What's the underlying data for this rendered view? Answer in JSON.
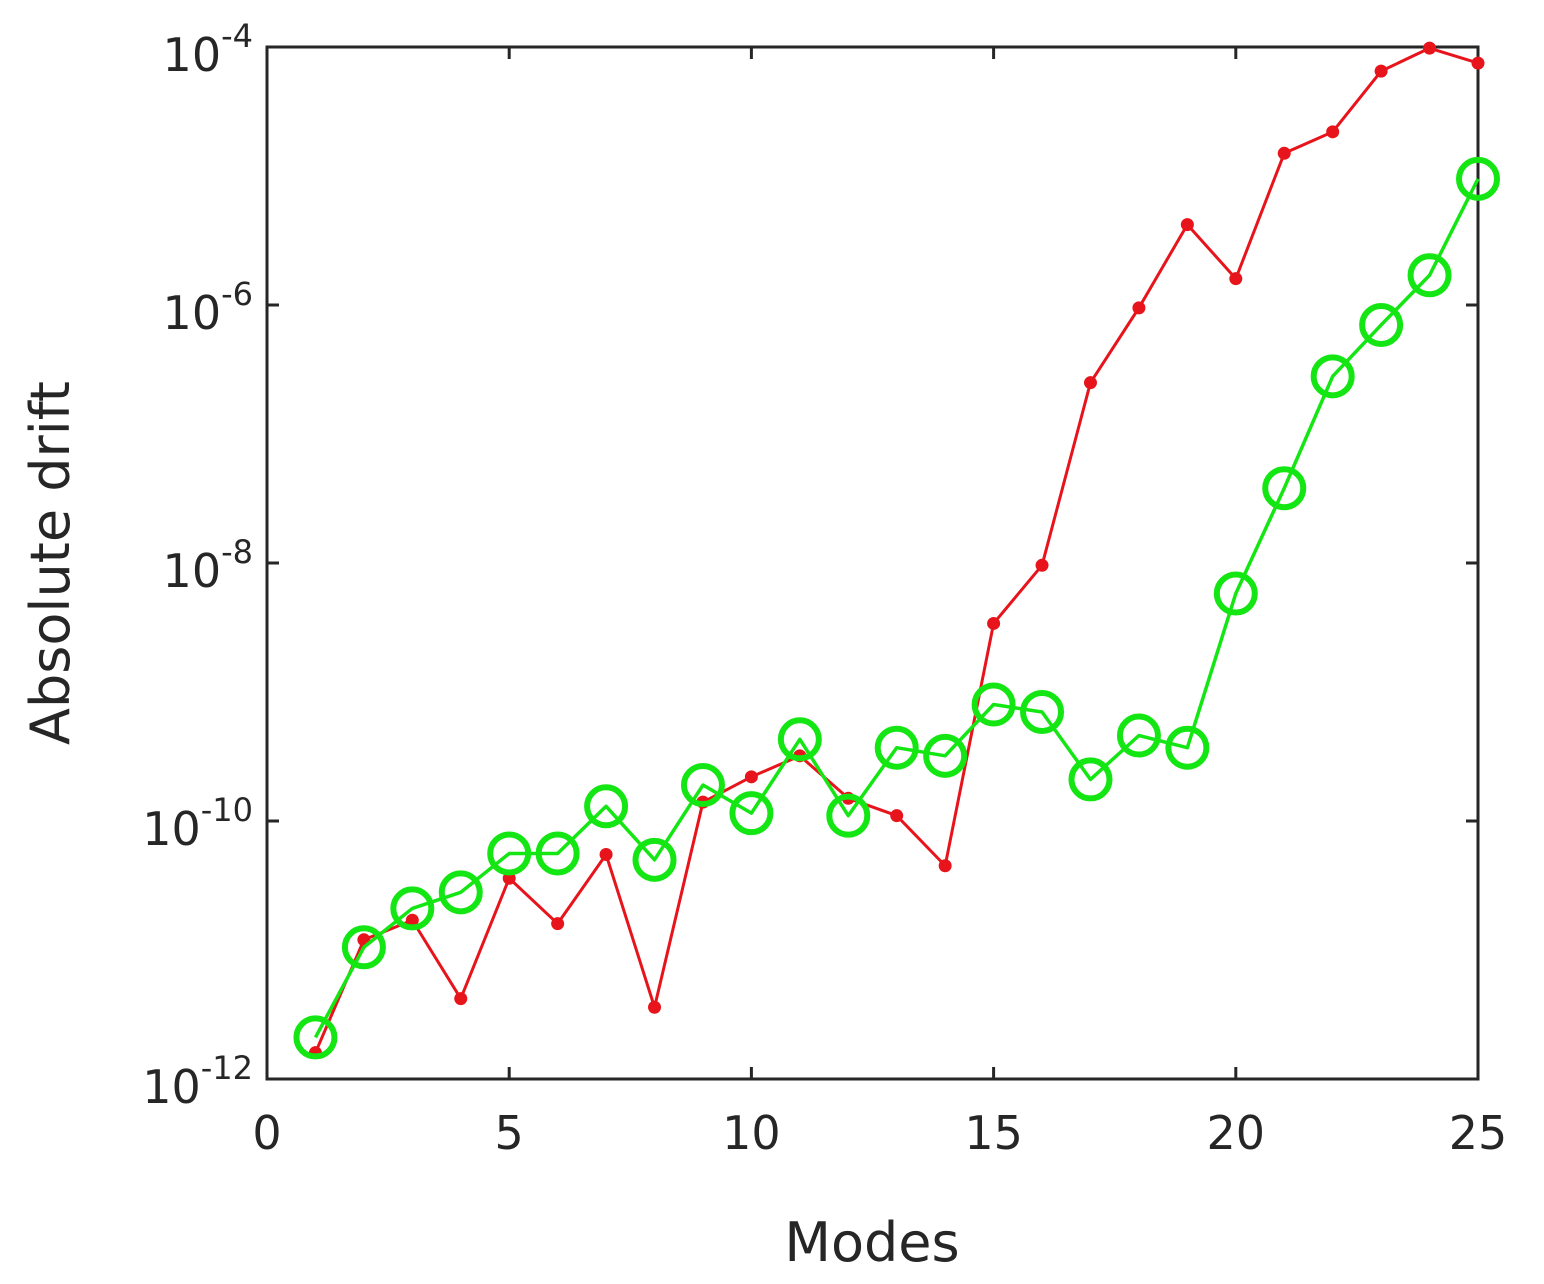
{
  "chart_data": {
    "type": "line",
    "xlabel": "Modes",
    "ylabel": "Absolute drift",
    "xlim": [
      0,
      25
    ],
    "ylim": [
      1e-12,
      0.0001
    ],
    "yscale": "log",
    "grid": false,
    "x_ticks": [
      0,
      5,
      10,
      15,
      20,
      25
    ],
    "y_ticks": [
      {
        "base": "10",
        "exp": "-12",
        "value": 1e-12
      },
      {
        "base": "10",
        "exp": "-10",
        "value": 1e-10
      },
      {
        "base": "10",
        "exp": "-8",
        "value": 1e-08
      },
      {
        "base": "10",
        "exp": "-6",
        "value": 1e-06
      },
      {
        "base": "10",
        "exp": "-4",
        "value": 0.0001
      }
    ],
    "x": [
      1,
      2,
      3,
      4,
      5,
      6,
      7,
      8,
      9,
      10,
      11,
      12,
      13,
      14,
      15,
      16,
      17,
      18,
      19,
      20,
      21,
      22,
      23,
      24,
      25
    ],
    "series": [
      {
        "color": "#e8141c",
        "marker": "dot",
        "values": [
          1.6e-12,
          1.2e-11,
          1.7e-11,
          4.2e-12,
          3.6e-11,
          1.6e-11,
          5.5e-11,
          3.6e-12,
          1.4e-10,
          2.2e-10,
          3.2e-10,
          1.5e-10,
          1.1e-10,
          4.5e-11,
          3.4e-09,
          9.6e-09,
          2.5e-07,
          9.5e-07,
          4.2e-06,
          1.6e-06,
          1.5e-05,
          2.2e-05,
          6.5e-05,
          9.8e-05,
          7.5e-05
        ]
      },
      {
        "color": "#14e614",
        "marker": "circle",
        "values": [
          2.1e-12,
          1.05e-11,
          2.1e-11,
          2.8e-11,
          5.6e-11,
          5.6e-11,
          1.3e-10,
          5e-11,
          1.9e-10,
          1.15e-10,
          4.3e-10,
          1.1e-10,
          3.7e-10,
          3.2e-10,
          8e-10,
          7e-10,
          2.1e-10,
          4.6e-10,
          3.7e-10,
          5.8e-09,
          3.8e-08,
          2.8e-07,
          7e-07,
          1.7e-06,
          9.5e-06
        ]
      }
    ]
  }
}
